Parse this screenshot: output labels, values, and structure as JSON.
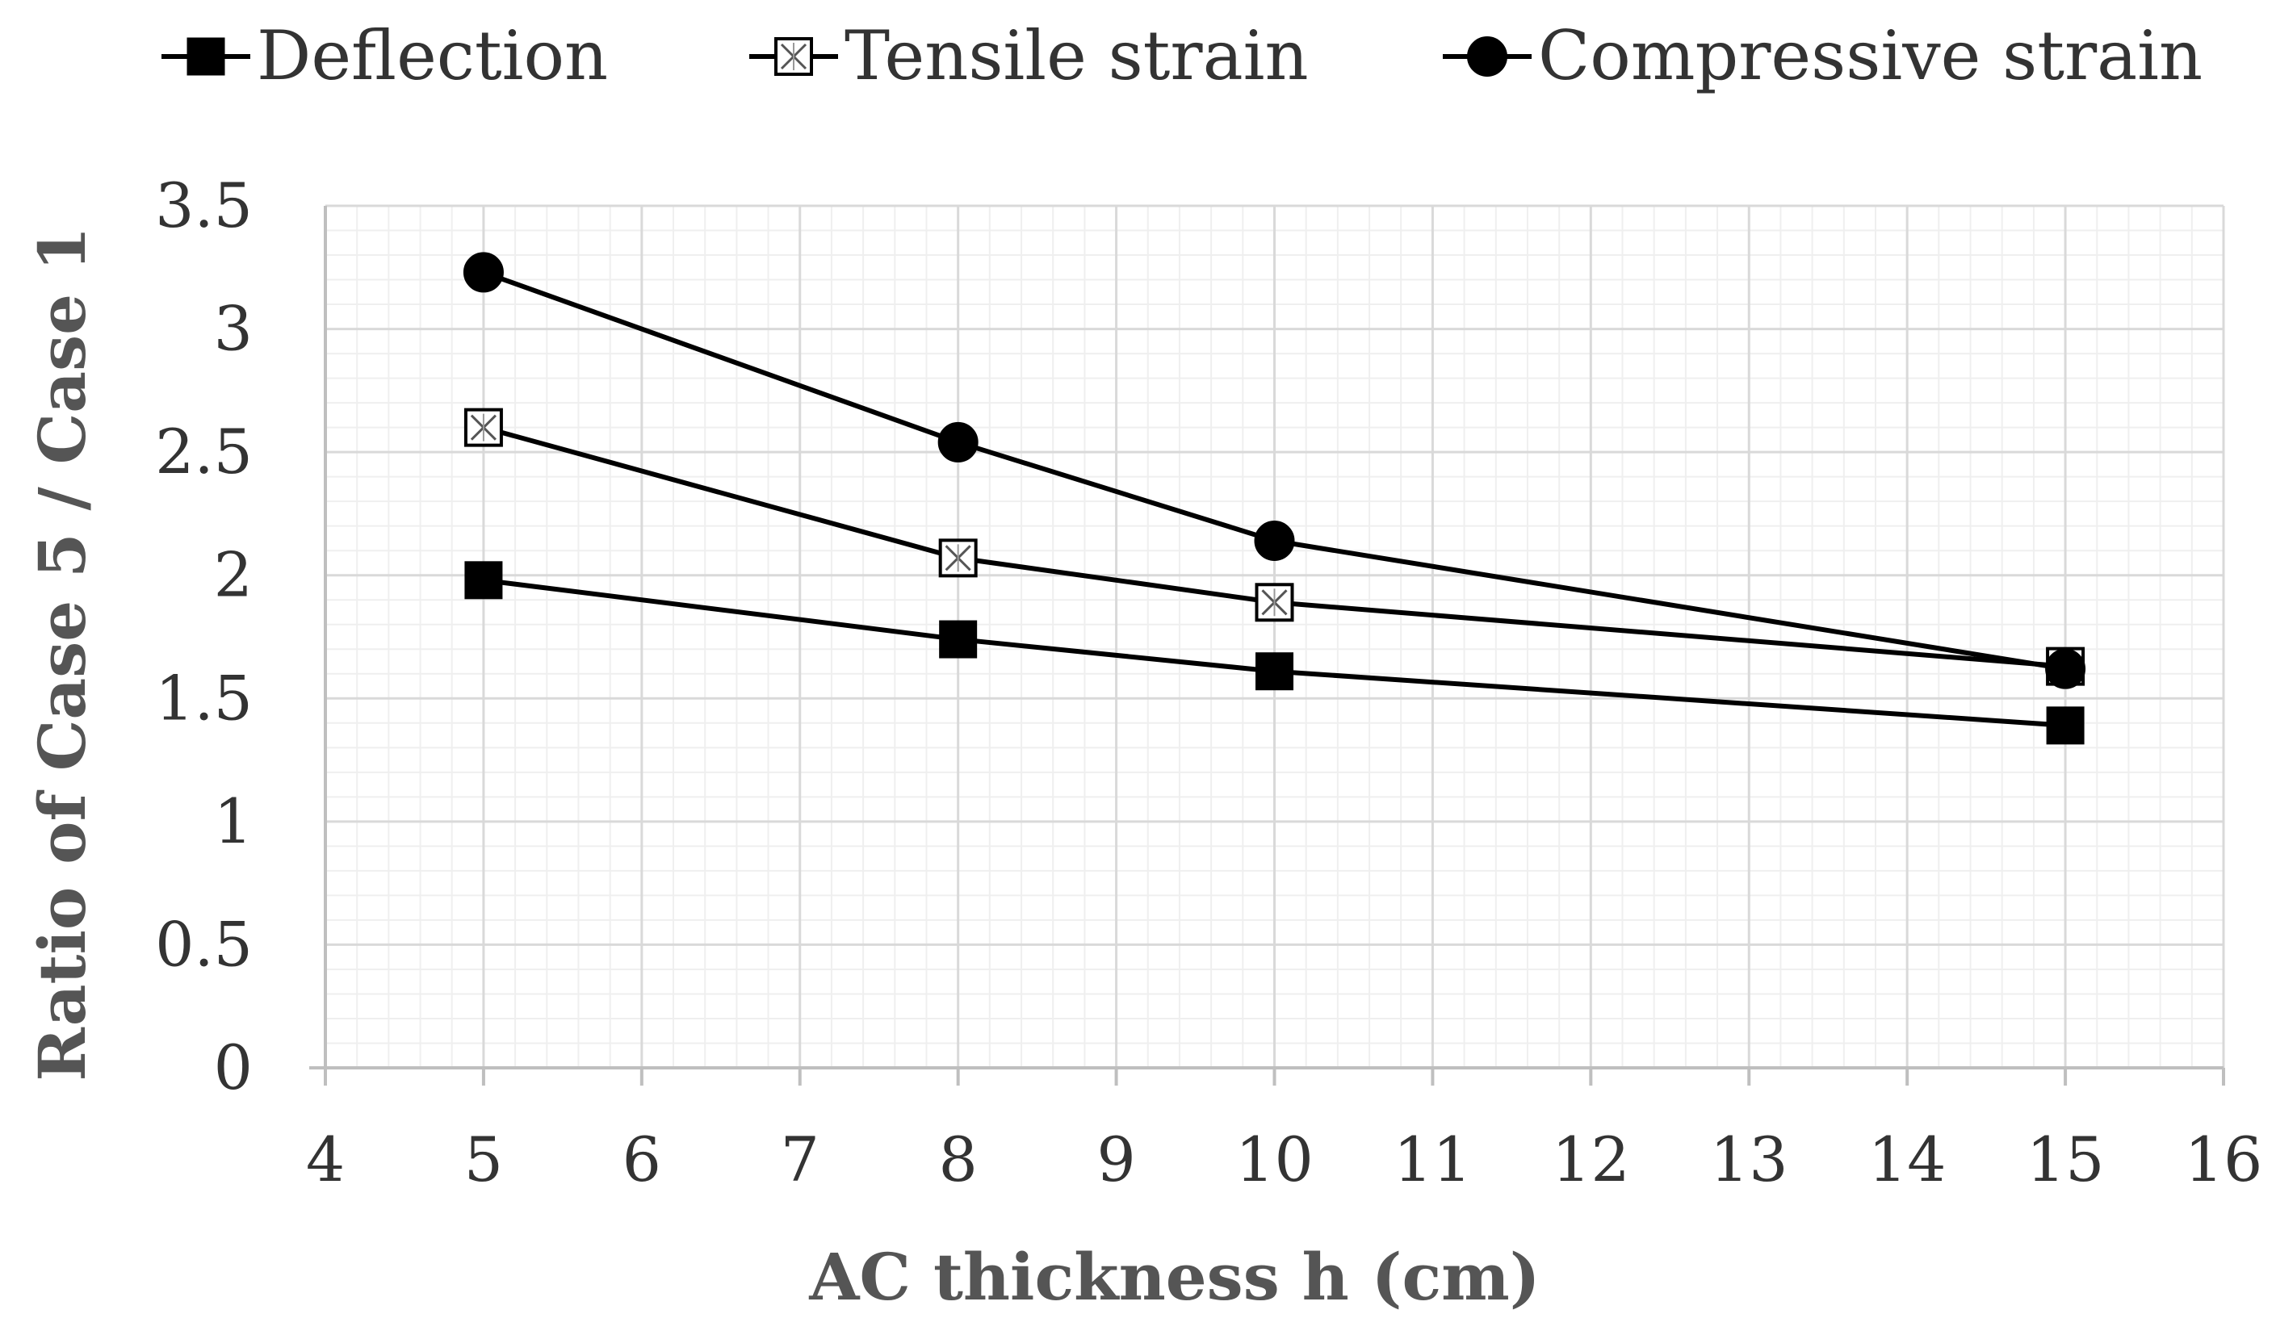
{
  "chart_data": {
    "type": "line",
    "title": "",
    "xlabel": "AC thickness h (cm)",
    "ylabel": "Ratio of Case 5 / Case 1",
    "xlim": [
      4,
      16
    ],
    "ylim": [
      0,
      3.5
    ],
    "x_ticks": [
      4,
      5,
      6,
      7,
      8,
      9,
      10,
      11,
      12,
      13,
      14,
      15,
      16
    ],
    "y_ticks": [
      0,
      0.5,
      1,
      1.5,
      2,
      2.5,
      3,
      3.5
    ],
    "y_tick_labels": [
      "0",
      "0.5",
      "1",
      "1.5",
      "2",
      "2.5",
      "3",
      "3.5"
    ],
    "grid": true,
    "legend_position": "top",
    "x": [
      5,
      8,
      10,
      15
    ],
    "series": [
      {
        "name": "Deflection",
        "marker": "square-filled",
        "values": [
          1.98,
          1.74,
          1.61,
          1.39
        ]
      },
      {
        "name": "Tensile strain",
        "marker": "square-cross",
        "values": [
          2.6,
          2.07,
          1.89,
          1.63
        ]
      },
      {
        "name": "Compressive strain",
        "marker": "circle-filled",
        "values": [
          3.23,
          2.54,
          2.14,
          1.62
        ]
      }
    ],
    "colors": {
      "line": "#000000",
      "major_grid": "#d9d9d9",
      "minor_grid": "#efefef",
      "axis": "#bfbfbf",
      "text": "#333333",
      "title_text": "#555555"
    }
  }
}
